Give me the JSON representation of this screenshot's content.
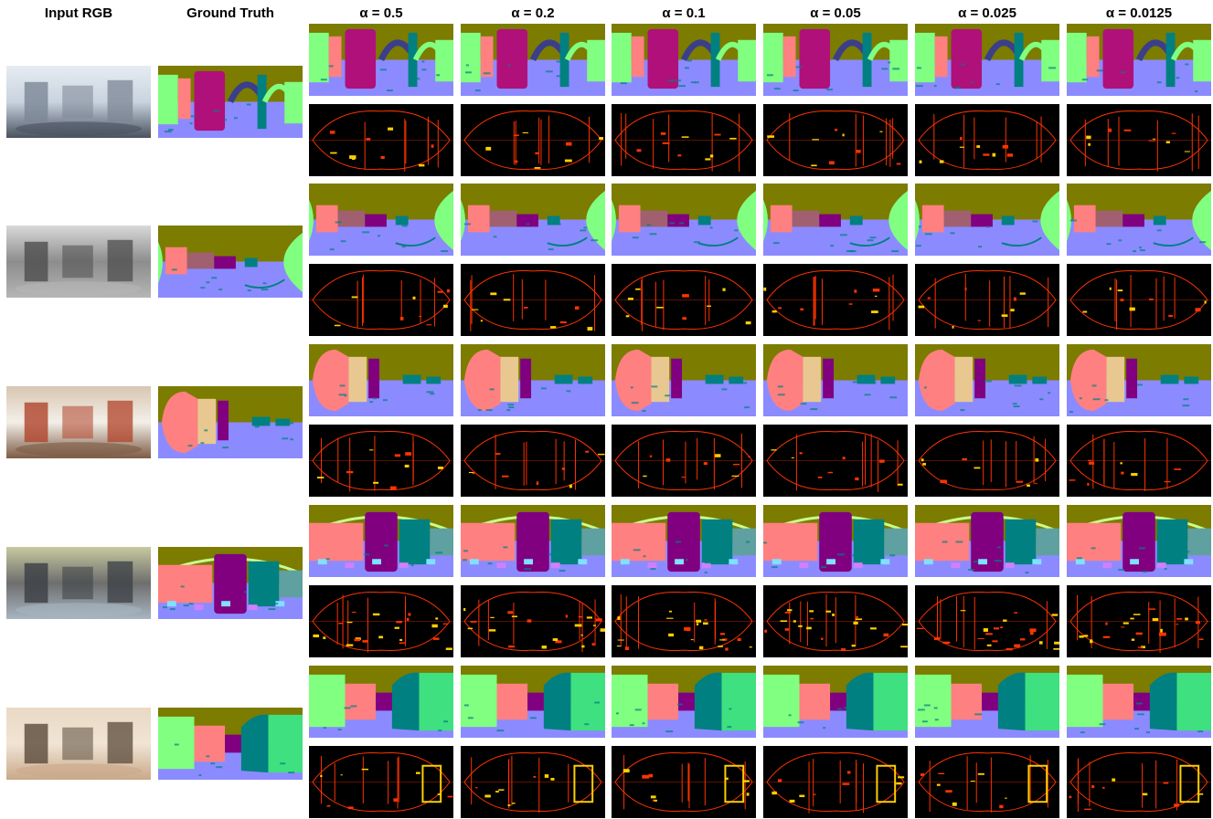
{
  "figure": {
    "columns": [
      {
        "key": "input",
        "label": "Input RGB"
      },
      {
        "key": "gt",
        "label": "Ground Truth"
      },
      {
        "key": "a1",
        "label": "α = 0.5"
      },
      {
        "key": "a2",
        "label": "α = 0.2"
      },
      {
        "key": "a3",
        "label": "α = 0.1"
      },
      {
        "key": "a4",
        "label": "α = 0.05"
      },
      {
        "key": "a5",
        "label": "α = 0.025"
      },
      {
        "key": "a6",
        "label": "α = 0.0125"
      }
    ],
    "scenes": 5,
    "tile_types": {
      "input": "rgb-panorama",
      "gt": "normal-map",
      "prediction": "normal-map",
      "error": "error-heatmap"
    },
    "colors": {
      "ceiling": "#7c7c00",
      "floor": "#8b8bff",
      "wall_green": "#80ff80",
      "wall_pink": "#ff8080",
      "magenta": "#b0107a",
      "purple": "#800080",
      "teal": "#008080",
      "error_bg": "#000000",
      "error_line": "#ff3300",
      "error_hot": "#ffd000"
    }
  }
}
